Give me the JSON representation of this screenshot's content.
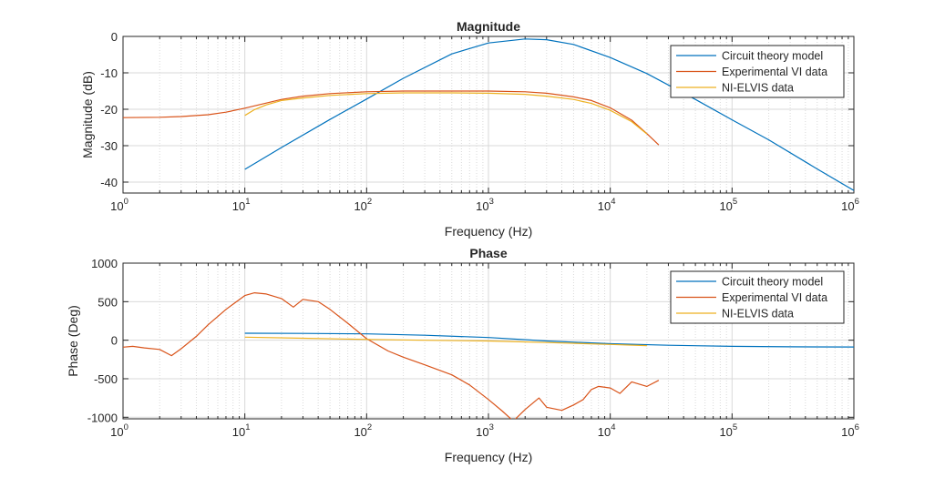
{
  "colors": {
    "series_blue": "#0072BD",
    "series_orange": "#D95319",
    "series_yellow": "#EDB120",
    "axis": "#262626",
    "grid": "#d9d9d9"
  },
  "chart_data": [
    {
      "type": "line",
      "title": "Magnitude",
      "xlabel": "Frequency (Hz)",
      "ylabel": "Magnitude (dB)",
      "xscale": "log",
      "xlim": [
        1,
        1000000
      ],
      "ylim": [
        -43,
        0
      ],
      "xticks": [
        {
          "base": "10",
          "exp": "0",
          "value": 1
        },
        {
          "base": "10",
          "exp": "1",
          "value": 10
        },
        {
          "base": "10",
          "exp": "2",
          "value": 100
        },
        {
          "base": "10",
          "exp": "3",
          "value": 1000
        },
        {
          "base": "10",
          "exp": "4",
          "value": 10000
        },
        {
          "base": "10",
          "exp": "5",
          "value": 100000
        },
        {
          "base": "10",
          "exp": "6",
          "value": 1000000
        }
      ],
      "yticks": [
        {
          "label": "0",
          "value": 0
        },
        {
          "label": "-10",
          "value": -10
        },
        {
          "label": "-20",
          "value": -20
        },
        {
          "label": "-30",
          "value": -30
        },
        {
          "label": "-40",
          "value": -40
        }
      ],
      "grid": true,
      "legend_position": "top-right",
      "series": [
        {
          "name": "Circuit theory model",
          "color": "#0072BD",
          "x": [
            10,
            20,
            50,
            100,
            200,
            500,
            1000,
            2000,
            3000,
            5000,
            10000,
            20000,
            50000,
            100000,
            200000,
            500000,
            1000000
          ],
          "y": [
            -36.5,
            -30.5,
            -22.8,
            -17.2,
            -11.5,
            -4.8,
            -1.8,
            -0.7,
            -0.9,
            -2.2,
            -5.8,
            -10.2,
            -17.3,
            -22.9,
            -28.4,
            -36.4,
            -42.3
          ]
        },
        {
          "name": "Experimental VI data",
          "color": "#D95319",
          "x": [
            1,
            2,
            3,
            5,
            7,
            10,
            15,
            20,
            30,
            50,
            100,
            200,
            500,
            1000,
            2000,
            3000,
            5000,
            7000,
            10000,
            15000,
            20000,
            25000
          ],
          "y": [
            -22.3,
            -22.2,
            -22.0,
            -21.5,
            -20.8,
            -19.7,
            -18.3,
            -17.3,
            -16.4,
            -15.7,
            -15.2,
            -15.0,
            -15.0,
            -15.0,
            -15.2,
            -15.6,
            -16.6,
            -17.6,
            -19.6,
            -23.0,
            -26.7,
            -29.8
          ]
        },
        {
          "name": "NI-ELVIS data",
          "color": "#EDB120",
          "x": [
            10,
            12,
            15,
            20,
            30,
            50,
            100,
            200,
            500,
            1000,
            2000,
            3000,
            5000,
            7000,
            10000,
            15000,
            20000
          ],
          "y": [
            -21.7,
            -20.1,
            -18.8,
            -17.6,
            -16.9,
            -16.2,
            -15.7,
            -15.5,
            -15.5,
            -15.6,
            -15.9,
            -16.4,
            -17.3,
            -18.4,
            -20.3,
            -23.4,
            -26.8
          ]
        }
      ]
    },
    {
      "type": "line",
      "title": "Phase",
      "xlabel": "Frequency (Hz)",
      "ylabel": "Phase (Deg)",
      "xscale": "log",
      "xlim": [
        1,
        1000000
      ],
      "ylim": [
        -1020,
        1000
      ],
      "xticks": [
        {
          "base": "10",
          "exp": "0",
          "value": 1
        },
        {
          "base": "10",
          "exp": "1",
          "value": 10
        },
        {
          "base": "10",
          "exp": "2",
          "value": 100
        },
        {
          "base": "10",
          "exp": "3",
          "value": 1000
        },
        {
          "base": "10",
          "exp": "4",
          "value": 10000
        },
        {
          "base": "10",
          "exp": "5",
          "value": 100000
        },
        {
          "base": "10",
          "exp": "6",
          "value": 1000000
        }
      ],
      "yticks": [
        {
          "label": "1000",
          "value": 1000
        },
        {
          "label": "500",
          "value": 500
        },
        {
          "label": "0",
          "value": 0
        },
        {
          "label": "-500",
          "value": -500
        },
        {
          "label": "-1000",
          "value": -1000
        }
      ],
      "grid": true,
      "legend_position": "top-right",
      "series": [
        {
          "name": "Circuit theory model",
          "color": "#0072BD",
          "x": [
            10,
            30,
            100,
            300,
            1000,
            3000,
            10000,
            30000,
            100000,
            300000,
            1000000
          ],
          "y": [
            90,
            88,
            82,
            65,
            35,
            -10,
            -45,
            -65,
            -80,
            -86,
            -88
          ]
        },
        {
          "name": "Experimental VI data",
          "color": "#D95319",
          "x": [
            1,
            1.2,
            1.5,
            2,
            2.5,
            3,
            4,
            5,
            7,
            10,
            12,
            15,
            20,
            25,
            30,
            40,
            50,
            70,
            100,
            150,
            200,
            300,
            500,
            700,
            1000,
            1300,
            1600,
            2000,
            2600,
            3000,
            4000,
            5000,
            6000,
            7000,
            8000,
            10000,
            12000,
            15000,
            20000,
            25000
          ],
          "y": [
            -90,
            -80,
            -100,
            -120,
            -200,
            -110,
            50,
            200,
            400,
            580,
            615,
            600,
            540,
            430,
            530,
            500,
            400,
            220,
            20,
            -140,
            -220,
            -320,
            -450,
            -580,
            -770,
            -920,
            -1050,
            -900,
            -750,
            -870,
            -910,
            -840,
            -770,
            -640,
            -600,
            -620,
            -690,
            -540,
            -600,
            -520
          ]
        },
        {
          "name": "NI-ELVIS data",
          "color": "#EDB120",
          "x": [
            10,
            30,
            100,
            300,
            1000,
            3000,
            10000,
            20000
          ],
          "y": [
            40,
            25,
            10,
            0,
            -10,
            -30,
            -55,
            -70
          ]
        }
      ]
    }
  ]
}
